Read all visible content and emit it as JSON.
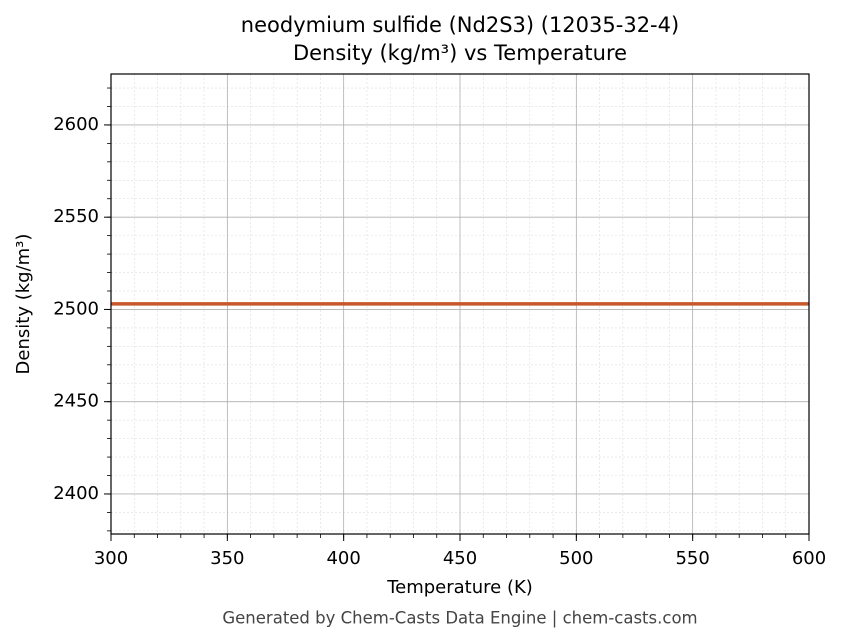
{
  "chart_data": {
    "type": "line",
    "title": "neodymium sulfide (Nd2S3) (12035-32-4)",
    "subtitle": "Density (kg/m³) vs Temperature",
    "x_label": "Temperature (K)",
    "y_label": "Density (kg/m³)",
    "footer": "Generated by Chem-Casts Data Engine | chem-casts.com",
    "x": [
      300,
      600
    ],
    "series": [
      {
        "name": "Density",
        "color": "#c8572b",
        "values": [
          2503,
          2503
        ]
      }
    ],
    "xlim": [
      300,
      600
    ],
    "xticks": [
      300,
      350,
      400,
      450,
      500,
      550,
      600
    ],
    "ylim": [
      2378.3,
      2627.6
    ],
    "yticks": [
      2400,
      2450,
      2500,
      2550,
      2600
    ],
    "grid": true,
    "minor_grid": true
  }
}
